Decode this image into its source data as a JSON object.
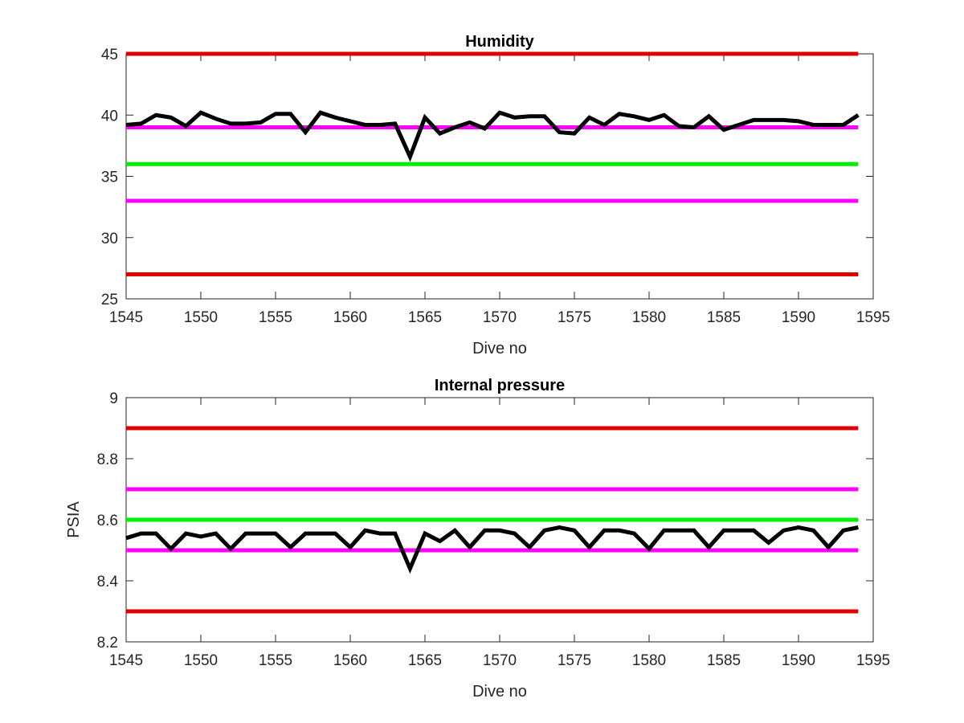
{
  "chart_data": [
    {
      "type": "line",
      "title": "Humidity",
      "xlabel": "Dive no",
      "ylabel": "",
      "xlim": [
        1545,
        1595
      ],
      "ylim": [
        25,
        45
      ],
      "xticks": [
        "1545",
        "1550",
        "1555",
        "1560",
        "1565",
        "1570",
        "1575",
        "1580",
        "1585",
        "1590",
        "1595"
      ],
      "yticks": [
        "25",
        "30",
        "35",
        "40",
        "45"
      ],
      "grid": false,
      "reference_lines": [
        {
          "y": 45,
          "color": "#e00000"
        },
        {
          "y": 39,
          "color": "#ff00ff"
        },
        {
          "y": 36,
          "color": "#00ee00"
        },
        {
          "y": 33,
          "color": "#ff00ff"
        },
        {
          "y": 27,
          "color": "#e00000"
        }
      ],
      "series": [
        {
          "color": "#000000",
          "x": [
            1545,
            1546,
            1547,
            1548,
            1549,
            1550,
            1551,
            1552,
            1553,
            1554,
            1555,
            1556,
            1557,
            1558,
            1559,
            1560,
            1561,
            1562,
            1563,
            1564,
            1565,
            1566,
            1567,
            1568,
            1569,
            1570,
            1571,
            1572,
            1573,
            1574,
            1575,
            1576,
            1577,
            1578,
            1579,
            1580,
            1581,
            1582,
            1583,
            1584,
            1585,
            1586,
            1587,
            1588,
            1589,
            1590,
            1591,
            1592,
            1593,
            1594
          ],
          "values": [
            39.2,
            39.3,
            40.0,
            39.8,
            39.1,
            40.2,
            39.7,
            39.3,
            39.3,
            39.4,
            40.1,
            40.1,
            38.6,
            40.2,
            39.8,
            39.5,
            39.2,
            39.2,
            39.3,
            36.6,
            39.8,
            38.5,
            39.0,
            39.4,
            38.9,
            40.2,
            39.8,
            39.9,
            39.9,
            38.6,
            38.5,
            39.8,
            39.2,
            40.1,
            39.9,
            39.6,
            40.0,
            39.1,
            39.0,
            39.9,
            38.8,
            39.2,
            39.6,
            39.6,
            39.6,
            39.5,
            39.2,
            39.2,
            39.2,
            40.0
          ]
        }
      ]
    },
    {
      "type": "line",
      "title": "Internal pressure",
      "xlabel": "Dive no",
      "ylabel": "PSIA",
      "xlim": [
        1545,
        1595
      ],
      "ylim": [
        8.2,
        9
      ],
      "xticks": [
        "1545",
        "1550",
        "1555",
        "1560",
        "1565",
        "1570",
        "1575",
        "1580",
        "1585",
        "1590",
        "1595"
      ],
      "yticks": [
        "8.2",
        "8.4",
        "8.6",
        "8.8",
        "9"
      ],
      "grid": false,
      "reference_lines": [
        {
          "y": 8.9,
          "color": "#e00000"
        },
        {
          "y": 8.7,
          "color": "#ff00ff"
        },
        {
          "y": 8.6,
          "color": "#00ee00"
        },
        {
          "y": 8.5,
          "color": "#ff00ff"
        },
        {
          "y": 8.3,
          "color": "#e00000"
        }
      ],
      "series": [
        {
          "color": "#000000",
          "x": [
            1545,
            1546,
            1547,
            1548,
            1549,
            1550,
            1551,
            1552,
            1553,
            1554,
            1555,
            1556,
            1557,
            1558,
            1559,
            1560,
            1561,
            1562,
            1563,
            1564,
            1565,
            1566,
            1567,
            1568,
            1569,
            1570,
            1571,
            1572,
            1573,
            1574,
            1575,
            1576,
            1577,
            1578,
            1579,
            1580,
            1581,
            1582,
            1583,
            1584,
            1585,
            1586,
            1587,
            1588,
            1589,
            1590,
            1591,
            1592,
            1593,
            1594
          ],
          "values": [
            8.54,
            8.555,
            8.555,
            8.505,
            8.555,
            8.545,
            8.555,
            8.505,
            8.555,
            8.555,
            8.555,
            8.51,
            8.555,
            8.555,
            8.555,
            8.51,
            8.565,
            8.555,
            8.555,
            8.44,
            8.555,
            8.53,
            8.565,
            8.51,
            8.565,
            8.565,
            8.555,
            8.51,
            8.565,
            8.575,
            8.565,
            8.51,
            8.565,
            8.565,
            8.555,
            8.505,
            8.565,
            8.565,
            8.565,
            8.51,
            8.565,
            8.565,
            8.565,
            8.525,
            8.565,
            8.575,
            8.565,
            8.51,
            8.565,
            8.575
          ]
        }
      ]
    }
  ]
}
